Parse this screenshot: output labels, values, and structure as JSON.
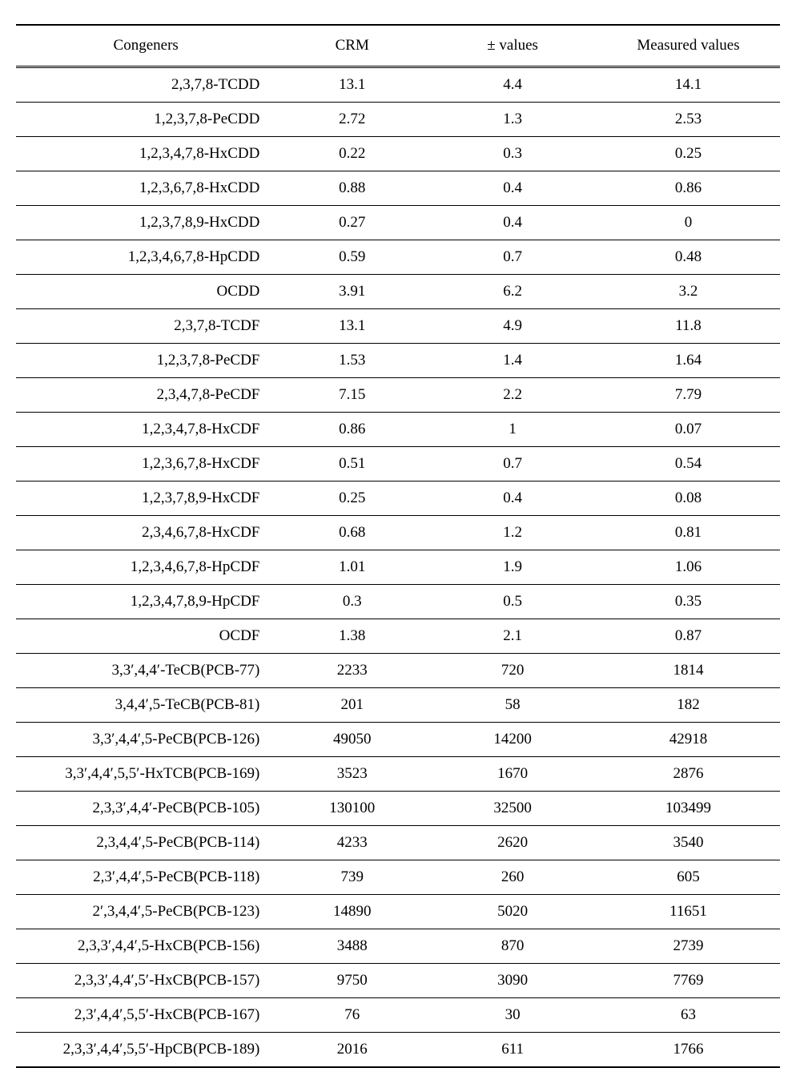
{
  "table": {
    "columns": {
      "congeners": "Congeners",
      "crm": "CRM",
      "pm_values": "± values",
      "measured": "Measured values"
    },
    "rows": [
      {
        "congener": "2,3,7,8-TCDD",
        "crm": "13.1",
        "pm": "4.4",
        "measured": "14.1"
      },
      {
        "congener": "1,2,3,7,8-PeCDD",
        "crm": "2.72",
        "pm": "1.3",
        "measured": "2.53"
      },
      {
        "congener": "1,2,3,4,7,8-HxCDD",
        "crm": "0.22",
        "pm": "0.3",
        "measured": "0.25"
      },
      {
        "congener": "1,2,3,6,7,8-HxCDD",
        "crm": "0.88",
        "pm": "0.4",
        "measured": "0.86"
      },
      {
        "congener": "1,2,3,7,8,9-HxCDD",
        "crm": "0.27",
        "pm": "0.4",
        "measured": "0"
      },
      {
        "congener": "1,2,3,4,6,7,8-HpCDD",
        "crm": "0.59",
        "pm": "0.7",
        "measured": "0.48"
      },
      {
        "congener": "OCDD",
        "crm": "3.91",
        "pm": "6.2",
        "measured": "3.2"
      },
      {
        "congener": "2,3,7,8-TCDF",
        "crm": "13.1",
        "pm": "4.9",
        "measured": "11.8"
      },
      {
        "congener": "1,2,3,7,8-PeCDF",
        "crm": "1.53",
        "pm": "1.4",
        "measured": "1.64"
      },
      {
        "congener": "2,3,4,7,8-PeCDF",
        "crm": "7.15",
        "pm": "2.2",
        "measured": "7.79"
      },
      {
        "congener": "1,2,3,4,7,8-HxCDF",
        "crm": "0.86",
        "pm": "1",
        "measured": "0.07"
      },
      {
        "congener": "1,2,3,6,7,8-HxCDF",
        "crm": "0.51",
        "pm": "0.7",
        "measured": "0.54"
      },
      {
        "congener": "1,2,3,7,8,9-HxCDF",
        "crm": "0.25",
        "pm": "0.4",
        "measured": "0.08"
      },
      {
        "congener": "2,3,4,6,7,8-HxCDF",
        "crm": "0.68",
        "pm": "1.2",
        "measured": "0.81"
      },
      {
        "congener": "1,2,3,4,6,7,8-HpCDF",
        "crm": "1.01",
        "pm": "1.9",
        "measured": "1.06"
      },
      {
        "congener": "1,2,3,4,7,8,9-HpCDF",
        "crm": "0.3",
        "pm": "0.5",
        "measured": "0.35"
      },
      {
        "congener": "OCDF",
        "crm": "1.38",
        "pm": "2.1",
        "measured": "0.87"
      },
      {
        "congener": "3,3′,4,4′-TeCB(PCB-77)",
        "crm": "2233",
        "pm": "720",
        "measured": "1814"
      },
      {
        "congener": "3,4,4′,5-TeCB(PCB-81)",
        "crm": "201",
        "pm": "58",
        "measured": "182"
      },
      {
        "congener": "3,3′,4,4′,5-PeCB(PCB-126)",
        "crm": "49050",
        "pm": "14200",
        "measured": "42918"
      },
      {
        "congener": "3,3′,4,4′,5,5′-HxTCB(PCB-169)",
        "crm": "3523",
        "pm": "1670",
        "measured": "2876"
      },
      {
        "congener": "2,3,3′,4,4′-PeCB(PCB-105)",
        "crm": "130100",
        "pm": "32500",
        "measured": "103499"
      },
      {
        "congener": "2,3,4,4′,5-PeCB(PCB-114)",
        "crm": "4233",
        "pm": "2620",
        "measured": "3540"
      },
      {
        "congener": "2,3′,4,4′,5-PeCB(PCB-118)",
        "crm": "739",
        "pm": "260",
        "measured": "605"
      },
      {
        "congener": "2′,3,4,4′,5-PeCB(PCB-123)",
        "crm": "14890",
        "pm": "5020",
        "measured": "11651"
      },
      {
        "congener": "2,3,3′,4,4′,5-HxCB(PCB-156)",
        "crm": "3488",
        "pm": "870",
        "measured": "2739"
      },
      {
        "congener": "2,3,3′,4,4′,5′-HxCB(PCB-157)",
        "crm": "9750",
        "pm": "3090",
        "measured": "7769"
      },
      {
        "congener": "2,3′,4,4′,5,5′-HxCB(PCB-167)",
        "crm": "76",
        "pm": "30",
        "measured": "63"
      },
      {
        "congener": "2,3,3′,4,4′,5,5′-HpCB(PCB-189)",
        "crm": "2016",
        "pm": "611",
        "measured": "1766"
      }
    ],
    "styling": {
      "type": "table",
      "border_top_color": "#000000",
      "border_top_width": 2,
      "header_border_bottom_style": "double",
      "row_border_color": "#000000",
      "row_border_width": 1,
      "last_row_border_width": 2,
      "background_color": "#ffffff",
      "text_color": "#000000",
      "font_family": "Times New Roman",
      "font_size": 19,
      "header_padding": "14px 8px",
      "cell_padding": "10px 8px",
      "column_widths_pct": [
        34,
        20,
        22,
        24
      ],
      "column_alignment": [
        "right",
        "center",
        "center",
        "center"
      ],
      "header_alignment": [
        "center",
        "center",
        "center",
        "center"
      ]
    }
  }
}
